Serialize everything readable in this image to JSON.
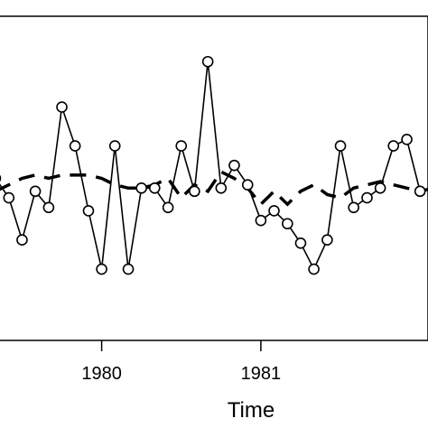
{
  "chart_data": {
    "type": "line",
    "xlabel": "Time",
    "ylabel": "",
    "title": "",
    "xlim": [
      1979.35,
      1982.05
    ],
    "ylim": [
      0,
      100
    ],
    "x_ticks": [
      {
        "value": 1980,
        "label": "1980"
      },
      {
        "value": 1981,
        "label": "1981"
      }
    ],
    "grid": false,
    "legend": "none",
    "series": [
      {
        "style": "solid-with-open-circles",
        "color": "#000000",
        "x": [
          1979.333,
          1979.417,
          1979.5,
          1979.583,
          1979.667,
          1979.75,
          1979.833,
          1979.917,
          1980.0,
          1980.083,
          1980.167,
          1980.25,
          1980.333,
          1980.417,
          1980.5,
          1980.583,
          1980.667,
          1980.75,
          1980.833,
          1980.917,
          1981.0,
          1981.083,
          1981.167,
          1981.25,
          1981.333,
          1981.417,
          1981.5,
          1981.583,
          1981.667,
          1981.75,
          1981.833,
          1981.917,
          1982.0,
          1982.083
        ],
        "values": [
          50,
          44,
          31,
          46,
          41,
          72,
          60,
          40,
          22,
          60,
          22,
          47,
          47,
          41,
          60,
          46,
          86,
          47,
          54,
          48,
          37,
          40,
          36,
          30,
          22,
          31,
          60,
          41,
          44,
          47,
          60,
          62,
          46,
          47
        ]
      },
      {
        "style": "dashed",
        "color": "#000000",
        "x": [
          1979.333,
          1979.417,
          1979.5,
          1979.583,
          1979.667,
          1979.75,
          1979.833,
          1979.917,
          1980.0,
          1980.083,
          1980.167,
          1980.25,
          1980.333,
          1980.417,
          1980.5,
          1980.583,
          1980.667,
          1980.75,
          1980.833,
          1980.917,
          1981.0,
          1981.083,
          1981.167,
          1981.25,
          1981.333,
          1981.417,
          1981.5,
          1981.583,
          1981.667,
          1981.75,
          1981.833,
          1981.917,
          1982.0,
          1982.083
        ],
        "values": [
          46,
          48,
          50,
          51,
          50,
          51,
          51,
          51,
          50,
          48,
          47,
          47,
          48,
          50,
          44,
          48,
          46,
          52,
          50,
          47,
          42,
          46,
          42,
          46,
          48,
          45,
          44,
          47,
          48,
          49,
          48,
          47,
          46,
          47
        ]
      }
    ]
  }
}
